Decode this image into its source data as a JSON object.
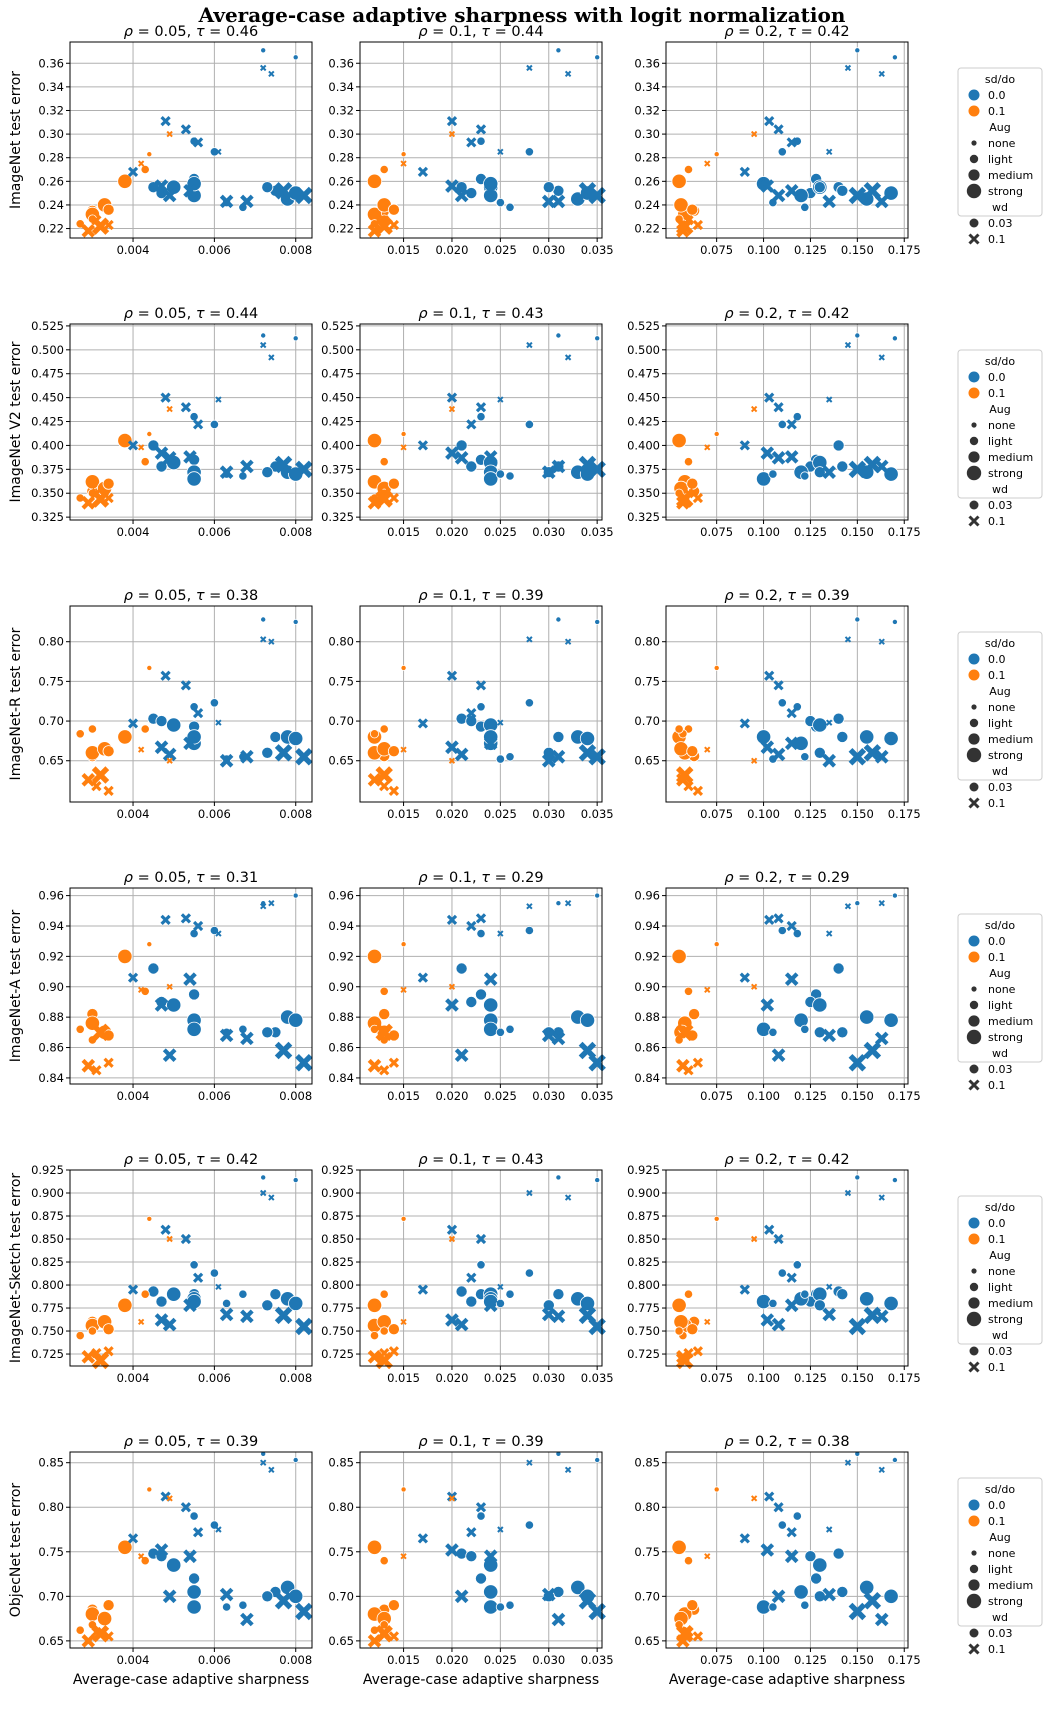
{
  "title": "Average-case adaptive sharpness with logit normalization",
  "colors": {
    "sd0": "#1f77b4",
    "sd1": "#ff7f0e",
    "grid": "#b0b0b0"
  },
  "xlabel": "Average-case adaptive sharpness",
  "columns": [
    {
      "rho": "0.05",
      "xlim": [
        0.00245,
        0.0084
      ],
      "xticks": [
        "0.004",
        "0.006",
        "0.008"
      ],
      "xtick_vals": [
        0.004,
        0.006,
        0.008
      ]
    },
    {
      "rho": "0.1",
      "xlim": [
        0.0105,
        0.0355
      ],
      "xticks": [
        "0.015",
        "0.020",
        "0.025",
        "0.030",
        "0.035"
      ],
      "xtick_vals": [
        0.015,
        0.02,
        0.025,
        0.03,
        0.035
      ]
    },
    {
      "rho": "0.2",
      "xlim": [
        0.048,
        0.177
      ],
      "xticks": [
        "0.075",
        "0.100",
        "0.125",
        "0.150",
        "0.175"
      ],
      "xtick_vals": [
        0.075,
        0.1,
        0.125,
        0.15,
        0.175
      ]
    }
  ],
  "legend": {
    "hue_title": "sd/do",
    "hue_items": [
      "0.0",
      "0.1"
    ],
    "size_title": "Aug",
    "size_items": [
      "none",
      "light",
      "medium",
      "strong"
    ],
    "style_title": "wd",
    "style_items": [
      "0.03",
      "0.1"
    ]
  },
  "chart_data": {
    "type": "scatter",
    "x_by_column": [
      [
        0.0072,
        0.008,
        0.0055,
        0.006,
        0.0045,
        0.0055,
        0.0047,
        0.005,
        0.0055,
        0.0055,
        0.0075,
        0.0078,
        0.008,
        0.0073,
        0.0067,
        0.0063,
        0.0044,
        0.0038,
        0.0043,
        0.003,
        0.003,
        0.0033,
        0.0034,
        0.0027,
        0.003,
        0.0072,
        0.0074,
        0.0061,
        0.0056,
        0.0053,
        0.0048,
        0.004,
        0.0054,
        0.0047,
        0.0049,
        0.0082,
        0.0077,
        0.0068,
        0.0063,
        0.0049,
        0.0042,
        0.0034,
        0.0031,
        0.0029,
        0.0032
      ],
      [
        0.031,
        0.035,
        0.023,
        0.028,
        0.021,
        0.023,
        0.022,
        0.024,
        0.024,
        0.024,
        0.031,
        0.033,
        0.034,
        0.03,
        0.026,
        0.025,
        0.015,
        0.012,
        0.013,
        0.013,
        0.012,
        0.013,
        0.014,
        0.012,
        0.013,
        0.028,
        0.032,
        0.025,
        0.022,
        0.023,
        0.02,
        0.017,
        0.024,
        0.02,
        0.021,
        0.035,
        0.034,
        0.031,
        0.03,
        0.02,
        0.015,
        0.014,
        0.013,
        0.012,
        0.013
      ],
      [
        0.15,
        0.17,
        0.118,
        0.11,
        0.14,
        0.128,
        0.125,
        0.13,
        0.12,
        0.1,
        0.142,
        0.155,
        0.168,
        0.13,
        0.122,
        0.105,
        0.075,
        0.055,
        0.06,
        0.063,
        0.058,
        0.056,
        0.062,
        0.057,
        0.055,
        0.145,
        0.163,
        0.135,
        0.115,
        0.108,
        0.103,
        0.09,
        0.115,
        0.102,
        0.108,
        0.15,
        0.158,
        0.163,
        0.135,
        0.095,
        0.07,
        0.065,
        0.06,
        0.057,
        0.058
      ]
    ],
    "hue": [
      0,
      0,
      0,
      0,
      0,
      0,
      0,
      0,
      0,
      0,
      0,
      0,
      0,
      0,
      0,
      0,
      1,
      1,
      1,
      1,
      1,
      1,
      1,
      1,
      1,
      0,
      0,
      0,
      0,
      0,
      0,
      0,
      0,
      0,
      0,
      0,
      0,
      0,
      0,
      1,
      1,
      1,
      1,
      1,
      1
    ],
    "size": [
      0,
      0,
      1,
      1,
      2,
      2,
      2,
      3,
      3,
      3,
      2,
      3,
      3,
      2,
      1,
      1,
      0,
      3,
      1,
      2,
      3,
      3,
      2,
      1,
      1,
      0,
      0,
      0,
      1,
      1,
      1,
      1,
      2,
      2,
      2,
      3,
      3,
      2,
      2,
      0,
      0,
      1,
      1,
      2,
      3
    ],
    "marker": [
      0,
      0,
      0,
      0,
      0,
      0,
      0,
      0,
      0,
      0,
      0,
      0,
      0,
      0,
      0,
      0,
      0,
      0,
      0,
      0,
      0,
      0,
      0,
      0,
      0,
      1,
      1,
      1,
      1,
      1,
      1,
      1,
      1,
      1,
      1,
      1,
      1,
      1,
      1,
      1,
      1,
      1,
      1,
      1,
      1
    ],
    "rows": [
      {
        "ylabel": "ImageNet test error",
        "ylim": [
          0.212,
          0.378
        ],
        "yticks": [
          0.22,
          0.24,
          0.26,
          0.28,
          0.3,
          0.32,
          0.34,
          0.36
        ],
        "ytick_labels": [
          "0.22",
          "0.24",
          "0.26",
          "0.28",
          "0.30",
          "0.32",
          "0.34",
          "0.36"
        ],
        "taus": [
          "0.46",
          "0.44",
          "0.42"
        ],
        "y": [
          0.371,
          0.365,
          0.294,
          0.285,
          0.255,
          0.262,
          0.25,
          0.255,
          0.248,
          0.258,
          0.252,
          0.245,
          0.25,
          0.255,
          0.238,
          0.242,
          0.283,
          0.26,
          0.27,
          0.235,
          0.232,
          0.24,
          0.236,
          0.224,
          0.228,
          0.356,
          0.351,
          0.285,
          0.293,
          0.304,
          0.311,
          0.268,
          0.252,
          0.256,
          0.248,
          0.248,
          0.252,
          0.243,
          0.243,
          0.3,
          0.275,
          0.223,
          0.227,
          0.218,
          0.222
        ]
      },
      {
        "ylabel": "ImageNet V2 test error",
        "ylim": [
          0.322,
          0.527
        ],
        "yticks": [
          0.325,
          0.35,
          0.375,
          0.4,
          0.425,
          0.45,
          0.475,
          0.5,
          0.525
        ],
        "ytick_labels": [
          "0.325",
          "0.350",
          "0.375",
          "0.400",
          "0.425",
          "0.450",
          "0.475",
          "0.500",
          "0.525"
        ],
        "taus": [
          "0.44",
          "0.43",
          "0.42"
        ],
        "y": [
          0.515,
          0.512,
          0.43,
          0.422,
          0.4,
          0.385,
          0.378,
          0.382,
          0.372,
          0.365,
          0.378,
          0.372,
          0.37,
          0.372,
          0.368,
          0.37,
          0.412,
          0.405,
          0.383,
          0.352,
          0.362,
          0.355,
          0.36,
          0.345,
          0.35,
          0.505,
          0.492,
          0.448,
          0.422,
          0.44,
          0.45,
          0.4,
          0.388,
          0.392,
          0.387,
          0.375,
          0.38,
          0.378,
          0.372,
          0.438,
          0.398,
          0.345,
          0.35,
          0.34,
          0.344
        ]
      },
      {
        "ylabel": "ImageNet-R test error",
        "ylim": [
          0.598,
          0.845
        ],
        "yticks": [
          0.65,
          0.7,
          0.75,
          0.8
        ],
        "ytick_labels": [
          "0.65",
          "0.70",
          "0.75",
          "0.80"
        ],
        "taus": [
          "0.38",
          "0.39",
          "0.39"
        ],
        "y": [
          0.828,
          0.825,
          0.718,
          0.723,
          0.703,
          0.693,
          0.7,
          0.695,
          0.672,
          0.68,
          0.68,
          0.68,
          0.678,
          0.66,
          0.655,
          0.652,
          0.767,
          0.68,
          0.69,
          0.656,
          0.66,
          0.665,
          0.662,
          0.684,
          0.69,
          0.803,
          0.8,
          0.698,
          0.71,
          0.745,
          0.757,
          0.697,
          0.672,
          0.667,
          0.658,
          0.655,
          0.66,
          0.655,
          0.65,
          0.65,
          0.664,
          0.612,
          0.618,
          0.626,
          0.632
        ]
      },
      {
        "ylabel": "ImageNet-A test error",
        "ylim": [
          0.836,
          0.965
        ],
        "yticks": [
          0.84,
          0.86,
          0.88,
          0.9,
          0.92,
          0.94,
          0.96
        ],
        "ytick_labels": [
          "0.84",
          "0.86",
          "0.88",
          "0.90",
          "0.92",
          "0.94",
          "0.96"
        ],
        "taus": [
          "0.31",
          "0.29",
          "0.29"
        ],
        "y": [
          0.955,
          0.96,
          0.935,
          0.937,
          0.912,
          0.895,
          0.89,
          0.888,
          0.878,
          0.872,
          0.87,
          0.88,
          0.878,
          0.87,
          0.872,
          0.87,
          0.928,
          0.92,
          0.897,
          0.882,
          0.876,
          0.87,
          0.868,
          0.872,
          0.865,
          0.953,
          0.955,
          0.935,
          0.94,
          0.945,
          0.944,
          0.906,
          0.905,
          0.888,
          0.855,
          0.85,
          0.858,
          0.866,
          0.868,
          0.9,
          0.898,
          0.85,
          0.845,
          0.848,
          0.87
        ]
      },
      {
        "ylabel": "ImageNet-Sketch test error",
        "ylim": [
          0.712,
          0.925
        ],
        "yticks": [
          0.725,
          0.75,
          0.775,
          0.8,
          0.825,
          0.85,
          0.875,
          0.9,
          0.925
        ],
        "ytick_labels": [
          "0.725",
          "0.750",
          "0.775",
          "0.800",
          "0.825",
          "0.850",
          "0.875",
          "0.900",
          "0.925"
        ],
        "taus": [
          "0.42",
          "0.43",
          "0.42"
        ],
        "y": [
          0.917,
          0.914,
          0.822,
          0.813,
          0.793,
          0.79,
          0.782,
          0.79,
          0.785,
          0.782,
          0.79,
          0.785,
          0.78,
          0.778,
          0.79,
          0.78,
          0.872,
          0.778,
          0.79,
          0.76,
          0.756,
          0.76,
          0.752,
          0.745,
          0.75,
          0.9,
          0.895,
          0.798,
          0.808,
          0.85,
          0.86,
          0.795,
          0.778,
          0.762,
          0.757,
          0.755,
          0.767,
          0.766,
          0.768,
          0.85,
          0.76,
          0.728,
          0.726,
          0.722,
          0.718
        ]
      },
      {
        "ylabel": "ObjecNet test error",
        "ylim": [
          0.642,
          0.862
        ],
        "yticks": [
          0.65,
          0.7,
          0.75,
          0.8,
          0.85
        ],
        "ytick_labels": [
          "0.65",
          "0.70",
          "0.75",
          "0.80",
          "0.85"
        ],
        "taus": [
          "0.39",
          "0.39",
          "0.38"
        ],
        "y": [
          0.86,
          0.853,
          0.79,
          0.78,
          0.748,
          0.72,
          0.745,
          0.735,
          0.705,
          0.688,
          0.705,
          0.71,
          0.7,
          0.7,
          0.69,
          0.688,
          0.82,
          0.755,
          0.74,
          0.685,
          0.68,
          0.675,
          0.69,
          0.662,
          0.668,
          0.85,
          0.842,
          0.775,
          0.772,
          0.8,
          0.812,
          0.765,
          0.745,
          0.752,
          0.7,
          0.683,
          0.695,
          0.674,
          0.702,
          0.81,
          0.745,
          0.655,
          0.66,
          0.65,
          0.658
        ]
      }
    ]
  }
}
